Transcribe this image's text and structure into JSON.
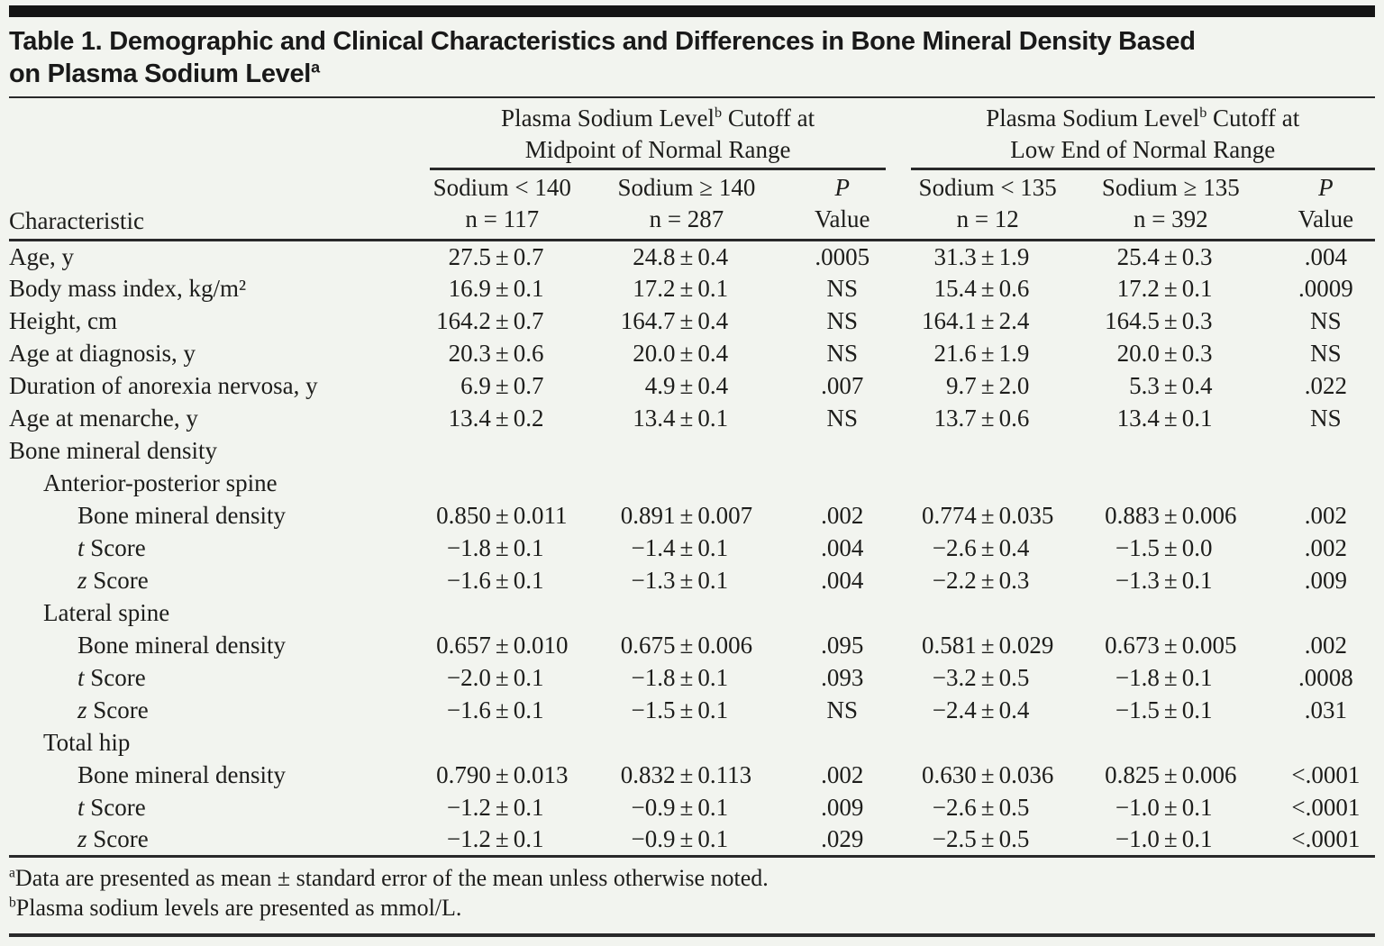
{
  "title": {
    "line1": "Table 1. Demographic and Clinical Characteristics and Differences in Bone Mineral Density Based",
    "line2": "on Plasma Sodium Level",
    "sup": "a"
  },
  "table": {
    "characteristic_header": "Characteristic",
    "groups": [
      {
        "line1_pre": "Plasma Sodium Level",
        "sup": "b",
        "line1_post": " Cutoff at",
        "line2": "Midpoint of Normal Range"
      },
      {
        "line1_pre": "Plasma Sodium Level",
        "sup": "b",
        "line1_post": " Cutoff at",
        "line2": "Low End of Normal Range"
      }
    ],
    "columns": [
      {
        "line1": "Sodium < 140",
        "line2": "n = 117"
      },
      {
        "line1": "Sodium ≥ 140",
        "line2": "n = 287"
      },
      {
        "line1": "P",
        "line2": "Value",
        "italic_line1": true
      },
      {
        "line1": "Sodium < 135",
        "line2": "n = 12"
      },
      {
        "line1": "Sodium ≥ 135",
        "line2": "n = 392"
      },
      {
        "line1": "P",
        "line2": "Value",
        "italic_line1": true
      }
    ],
    "rows": [
      {
        "label": "Age, y",
        "indent": 0,
        "cells": [
          "27.5±0.7",
          "24.8±0.4",
          ".0005",
          "31.3±1.9",
          "25.4±0.3",
          ".004"
        ]
      },
      {
        "label": "Body mass index, kg/m²",
        "indent": 0,
        "cells": [
          "16.9±0.1",
          "17.2±0.1",
          "NS",
          "15.4±0.6",
          "17.2±0.1",
          ".0009"
        ]
      },
      {
        "label": "Height, cm",
        "indent": 0,
        "cells": [
          "164.2±0.7",
          "164.7±0.4",
          "NS",
          "164.1±2.4",
          "164.5±0.3",
          "NS"
        ]
      },
      {
        "label": "Age at diagnosis, y",
        "indent": 0,
        "cells": [
          "20.3±0.6",
          "20.0±0.4",
          "NS",
          "21.6±1.9",
          "20.0±0.3",
          "NS"
        ]
      },
      {
        "label": "Duration of anorexia nervosa, y",
        "indent": 0,
        "cells": [
          "6.9±0.7",
          "4.9±0.4",
          ".007",
          "9.7±2.0",
          "5.3±0.4",
          ".022"
        ]
      },
      {
        "label": "Age at menarche, y",
        "indent": 0,
        "cells": [
          "13.4±0.2",
          "13.4±0.1",
          "NS",
          "13.7±0.6",
          "13.4±0.1",
          "NS"
        ]
      },
      {
        "label": "Bone mineral density",
        "indent": 0,
        "cells": null
      },
      {
        "label": "Anterior-posterior spine",
        "indent": 1,
        "cells": null
      },
      {
        "label": "Bone mineral density",
        "indent": 2,
        "cells": [
          "0.850±0.011",
          "0.891±0.007",
          ".002",
          "0.774±0.035",
          "0.883±0.006",
          ".002"
        ]
      },
      {
        "label": "t Score",
        "indent": 2,
        "it": true,
        "cells": [
          "−1.8±0.1",
          "−1.4±0.1",
          ".004",
          "−2.6±0.4",
          "−1.5±0.0",
          ".002"
        ]
      },
      {
        "label": "z Score",
        "indent": 2,
        "it": true,
        "cells": [
          "−1.6±0.1",
          "−1.3±0.1",
          ".004",
          "−2.2±0.3",
          "−1.3±0.1",
          ".009"
        ]
      },
      {
        "label": "Lateral spine",
        "indent": 1,
        "cells": null
      },
      {
        "label": "Bone mineral density",
        "indent": 2,
        "cells": [
          "0.657±0.010",
          "0.675±0.006",
          ".095",
          "0.581±0.029",
          "0.673±0.005",
          ".002"
        ]
      },
      {
        "label": "t Score",
        "indent": 2,
        "it": true,
        "cells": [
          "−2.0±0.1",
          "−1.8±0.1",
          ".093",
          "−3.2±0.5",
          "−1.8±0.1",
          ".0008"
        ]
      },
      {
        "label": "z Score",
        "indent": 2,
        "it": true,
        "cells": [
          "−1.6±0.1",
          "−1.5±0.1",
          "NS",
          "−2.4±0.4",
          "−1.5±0.1",
          ".031"
        ]
      },
      {
        "label": "Total hip",
        "indent": 1,
        "cells": null
      },
      {
        "label": "Bone mineral density",
        "indent": 2,
        "cells": [
          "0.790±0.013",
          "0.832±0.113",
          ".002",
          "0.630±0.036",
          "0.825±0.006",
          "<.0001"
        ]
      },
      {
        "label": "t Score",
        "indent": 2,
        "it": true,
        "cells": [
          "−1.2±0.1",
          "−0.9±0.1",
          ".009",
          "−2.6±0.5",
          "−1.0±0.1",
          "<.0001"
        ]
      },
      {
        "label": "z Score",
        "indent": 2,
        "it": true,
        "cells": [
          "−1.2±0.1",
          "−0.9±0.1",
          ".029",
          "−2.5±0.5",
          "−1.0±0.1",
          "<.0001"
        ]
      }
    ]
  },
  "footnotes": [
    {
      "marker": "a",
      "text": "Data are presented as mean ± standard error of the mean unless otherwise noted."
    },
    {
      "marker": "b",
      "text": "Plasma sodium levels are presented as mmol/L."
    }
  ],
  "colors": {
    "background": "#f2f4ef",
    "ink": "#1d1d1b",
    "rule": "#29292a",
    "top_bar": "#141414"
  }
}
